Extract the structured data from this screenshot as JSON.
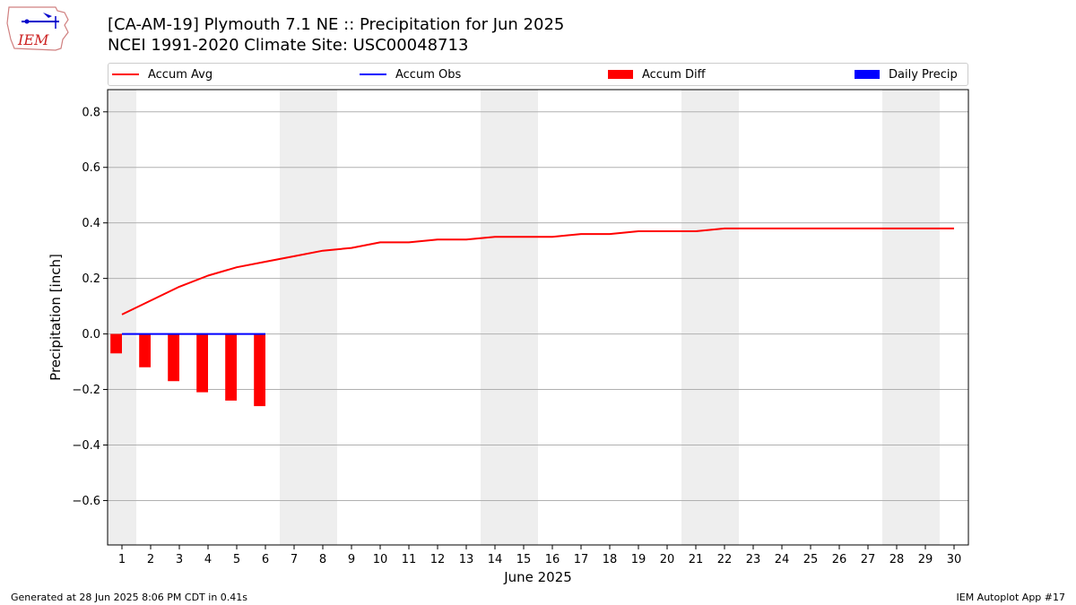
{
  "header": {
    "logo_text": "IEM",
    "title_line1": "[CA-AM-19] Plymouth 7.1 NE :: Precipitation for Jun 2025",
    "title_line2": "NCEI 1991-2020 Climate Site: USC00048713"
  },
  "legend": [
    {
      "label": "Accum Avg",
      "kind": "line",
      "color": "#ff0000"
    },
    {
      "label": "Accum Obs",
      "kind": "line",
      "color": "#0000ff"
    },
    {
      "label": "Accum Diff",
      "kind": "bar",
      "color": "#ff0000"
    },
    {
      "label": "Daily Precip",
      "kind": "bar",
      "color": "#0000ff"
    }
  ],
  "footer": {
    "left": "Generated at 28 Jun 2025 8:06 PM CDT in 0.41s",
    "right": "IEM Autoplot App #17"
  },
  "chart_data": {
    "type": "line",
    "xlabel": "June 2025",
    "ylabel": "Precipitation [inch]",
    "x": [
      1,
      2,
      3,
      4,
      5,
      6,
      7,
      8,
      9,
      10,
      11,
      12,
      13,
      14,
      15,
      16,
      17,
      18,
      19,
      20,
      21,
      22,
      23,
      24,
      25,
      26,
      27,
      28,
      29,
      30
    ],
    "xlim": [
      0.5,
      30.5
    ],
    "ylim": [
      -0.76,
      0.88
    ],
    "yticks": [
      -0.6,
      -0.4,
      -0.2,
      0.0,
      0.2,
      0.4,
      0.6,
      0.8
    ],
    "ytick_labels": [
      "−0.6",
      "−0.4",
      "−0.2",
      "0.0",
      "0.2",
      "0.4",
      "0.6",
      "0.8"
    ],
    "grid": "y",
    "weekend_shading": [
      [
        0.5,
        1.5
      ],
      [
        6.5,
        8.5
      ],
      [
        13.5,
        15.5
      ],
      [
        20.5,
        22.5
      ],
      [
        27.5,
        29.5
      ]
    ],
    "shading_color": "#eeeeee",
    "series": [
      {
        "name": "Accum Avg",
        "kind": "line",
        "color": "#ff0000",
        "x": [
          1,
          2,
          3,
          4,
          5,
          6,
          7,
          8,
          9,
          10,
          11,
          12,
          13,
          14,
          15,
          16,
          17,
          18,
          19,
          20,
          21,
          22,
          23,
          24,
          25,
          26,
          27,
          28,
          29,
          30
        ],
        "values": [
          0.07,
          0.12,
          0.17,
          0.21,
          0.24,
          0.26,
          0.28,
          0.3,
          0.31,
          0.33,
          0.33,
          0.34,
          0.34,
          0.35,
          0.35,
          0.35,
          0.36,
          0.36,
          0.37,
          0.37,
          0.37,
          0.38,
          0.38,
          0.38,
          0.38,
          0.38,
          0.38,
          0.38,
          0.38,
          0.38
        ]
      },
      {
        "name": "Accum Obs",
        "kind": "line",
        "color": "#0000ff",
        "x": [
          1,
          2,
          3,
          4,
          5,
          6
        ],
        "values": [
          0,
          0,
          0,
          0,
          0,
          0
        ]
      },
      {
        "name": "Accum Diff",
        "kind": "bar",
        "color": "#ff0000",
        "x": [
          1,
          2,
          3,
          4,
          5,
          6
        ],
        "values": [
          -0.07,
          -0.12,
          -0.17,
          -0.21,
          -0.24,
          -0.26
        ]
      },
      {
        "name": "Daily Precip",
        "kind": "bar",
        "color": "#0000ff",
        "x": [
          1,
          2,
          3,
          4,
          5,
          6
        ],
        "values": [
          0,
          0,
          0,
          0,
          0,
          0
        ]
      }
    ]
  }
}
